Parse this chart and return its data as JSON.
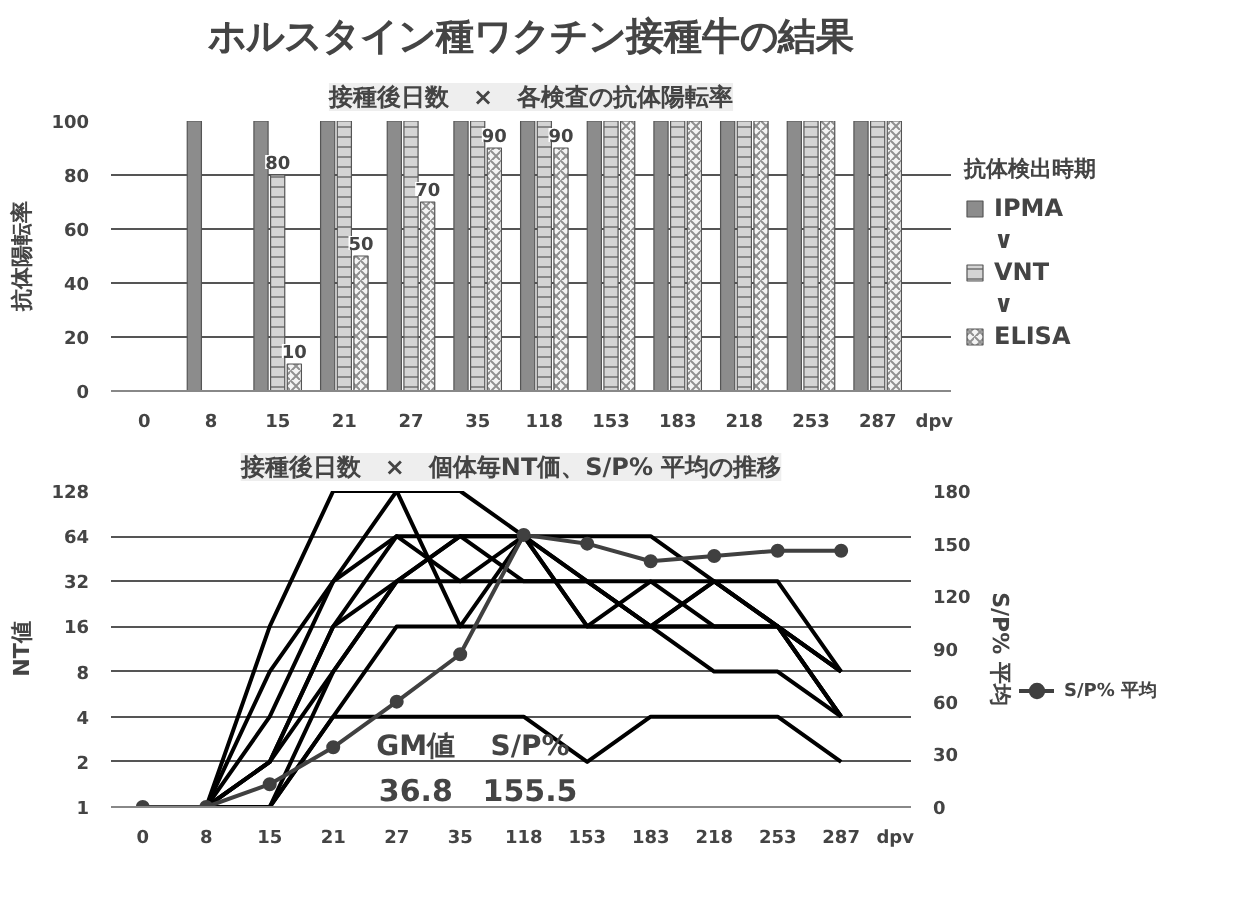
{
  "chart_data": [
    {
      "type": "bar",
      "title": "ホルスタイン種ワクチン接種牛の結果",
      "subtitle": "接種後日数　×　各検査の抗体陽転率",
      "ylabel": "抗体陽転率",
      "xlabel": "dpv",
      "legend_title": "抗体検出時期",
      "legend": "right",
      "grid": "y",
      "categories": [
        "0",
        "8",
        "15",
        "21",
        "27",
        "35",
        "118",
        "153",
        "183",
        "218",
        "253",
        "287"
      ],
      "ylim": [
        0,
        100
      ],
      "yticks": [
        0,
        20,
        40,
        60,
        80,
        100
      ],
      "annotations": [
        "∨",
        "∨"
      ],
      "series": [
        {
          "name": "IPMA",
          "color": "#8c8c8c",
          "values": [
            0,
            100,
            100,
            100,
            100,
            100,
            100,
            100,
            100,
            100,
            100,
            100
          ]
        },
        {
          "name": "VNT",
          "color": "#d4d4d4",
          "values": [
            0,
            0,
            80,
            100,
            100,
            100,
            100,
            100,
            100,
            100,
            100,
            100
          ],
          "value_labels": [
            null,
            null,
            "80",
            null,
            null,
            null,
            null,
            null,
            null,
            null,
            null,
            null
          ]
        },
        {
          "name": "ELISA",
          "color": "#f4f4f4",
          "values": [
            0,
            0,
            10,
            50,
            70,
            90,
            90,
            100,
            100,
            100,
            100,
            100
          ],
          "value_labels": [
            null,
            null,
            "10",
            "50",
            "70",
            "90",
            "90",
            null,
            null,
            null,
            null,
            null
          ]
        }
      ]
    },
    {
      "type": "line",
      "title": "接種後日数　×　個体毎NT価、S/P% 平均の推移",
      "ylabel": "NT値",
      "y2label": "S/P% 平均",
      "xlabel": "dpv",
      "legend": "right",
      "grid": "y",
      "log": "y",
      "categories": [
        "0",
        "8",
        "15",
        "21",
        "27",
        "35",
        "118",
        "153",
        "183",
        "218",
        "253",
        "287"
      ],
      "ylim": [
        1,
        128
      ],
      "yticks": [
        1,
        2,
        4,
        8,
        16,
        32,
        64,
        128
      ],
      "y2lim": [
        0,
        180
      ],
      "y2ticks": [
        0,
        30,
        60,
        90,
        120,
        150,
        180
      ],
      "annotations": [
        "GM値",
        "36.8",
        "S/P%",
        "155.5"
      ],
      "series": [
        {
          "color": "#000000",
          "marker": "none",
          "values": [
            1,
            1,
            16,
            128,
            128,
            128,
            64,
            32,
            16,
            32,
            16,
            8
          ]
        },
        {
          "color": "#000000",
          "marker": "none",
          "values": [
            1,
            1,
            8,
            32,
            128,
            16,
            64,
            64,
            64,
            32,
            16,
            4
          ]
        },
        {
          "color": "#000000",
          "marker": "none",
          "values": [
            1,
            1,
            4,
            32,
            64,
            64,
            64,
            16,
            32,
            16,
            16,
            4
          ]
        },
        {
          "color": "#000000",
          "marker": "none",
          "values": [
            1,
            1,
            2,
            16,
            64,
            32,
            32,
            32,
            32,
            32,
            32,
            8
          ]
        },
        {
          "color": "#000000",
          "marker": "none",
          "values": [
            1,
            1,
            2,
            8,
            32,
            64,
            64,
            32,
            16,
            32,
            16,
            8
          ]
        },
        {
          "color": "#000000",
          "marker": "none",
          "values": [
            1,
            1,
            1,
            4,
            16,
            16,
            16,
            16,
            16,
            16,
            16,
            8
          ]
        },
        {
          "color": "#000000",
          "marker": "none",
          "values": [
            1,
            1,
            1,
            4,
            4,
            4,
            4,
            2,
            4,
            4,
            4,
            2
          ]
        },
        {
          "color": "#000000",
          "marker": "none",
          "values": [
            1,
            1,
            1,
            8,
            32,
            32,
            64,
            16,
            16,
            8,
            8,
            4
          ]
        },
        {
          "color": "#000000",
          "marker": "none",
          "values": [
            1,
            1,
            2,
            16,
            32,
            64,
            32,
            32,
            16,
            16,
            16,
            4
          ]
        },
        {
          "name": "S/P% 平均",
          "color": "#404040",
          "marker": "circle",
          "axis": "y2",
          "values": [
            0,
            0,
            13,
            34,
            60,
            87,
            155,
            150,
            140,
            143,
            146,
            146
          ]
        }
      ]
    }
  ]
}
